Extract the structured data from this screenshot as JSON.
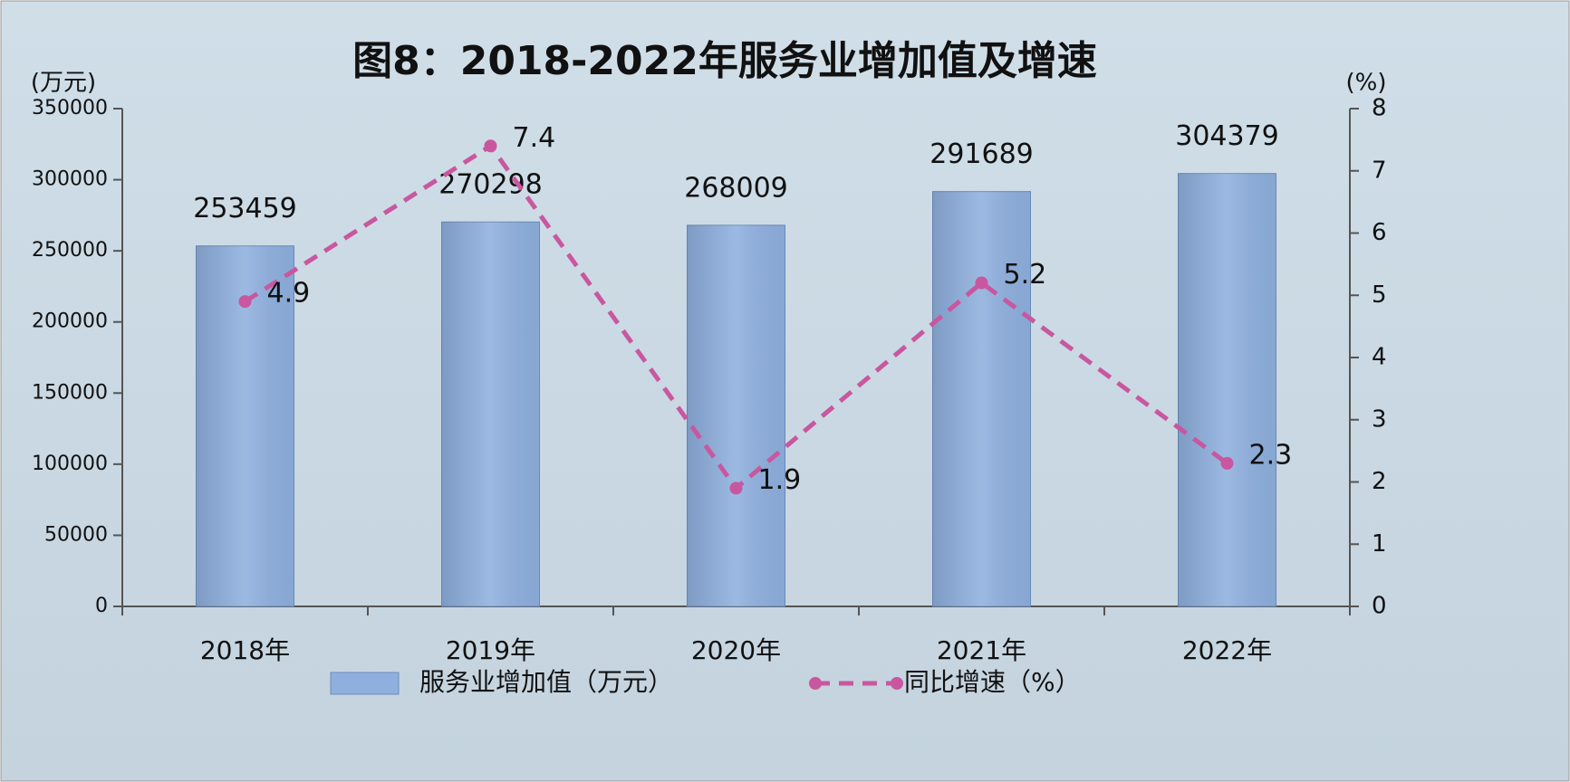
{
  "chart_data": {
    "type": "bar",
    "title": "图8：2018-2022年服务业增加值及增速",
    "y_label": "(万元)",
    "y2_label": "(%)",
    "categories": [
      "2018年",
      "2019年",
      "2020年",
      "2021年",
      "2022年"
    ],
    "series": [
      {
        "name": "服务业增加值（万元）",
        "type": "bar",
        "color": "#8fb0df",
        "values": [
          253459,
          270298,
          268009,
          291689,
          304379
        ]
      },
      {
        "name": "同比增速（%）",
        "type": "line",
        "axis": "y2",
        "color": "#c9579f",
        "values": [
          4.9,
          7.4,
          1.9,
          5.2,
          2.3
        ]
      }
    ],
    "ylim": [
      0,
      350000
    ],
    "yticks": [
      0,
      50000,
      100000,
      150000,
      200000,
      250000,
      300000,
      350000
    ],
    "y2lim": [
      0,
      8
    ],
    "y2ticks": [
      0,
      1,
      2,
      3,
      4,
      5,
      6,
      7,
      8
    ],
    "legend": "bottom"
  }
}
